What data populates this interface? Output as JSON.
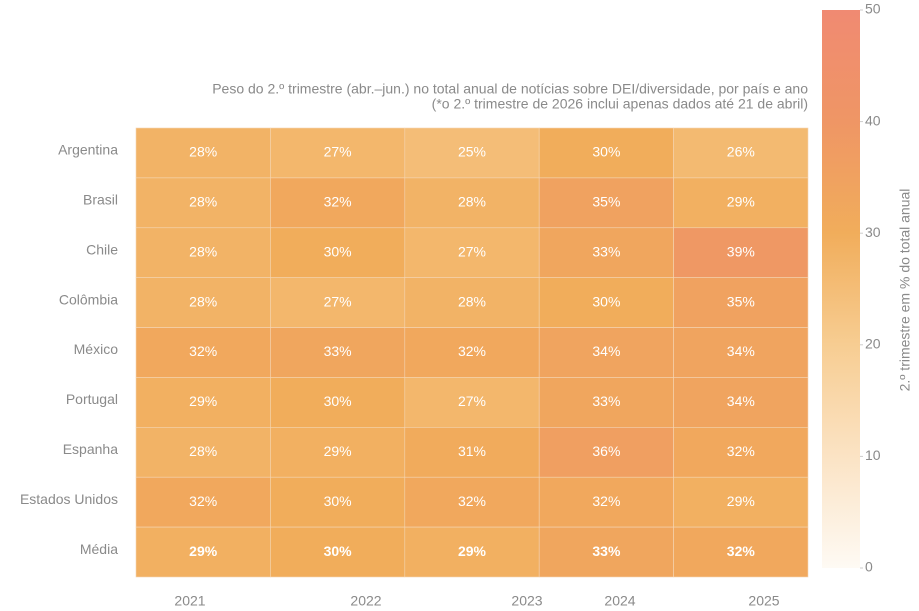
{
  "chart_data": {
    "type": "heatmap",
    "title": [
      "Peso do 2.º trimestre (abr.–jun.) no total anual de notícias sobre DEI/diversidade, por país e ano",
      "(*o 2.º trimestre de 2026 inclui apenas dados até 21 de abril)"
    ],
    "x": [
      "2021",
      "2022",
      "2023",
      "2024",
      "2025"
    ],
    "categories": [
      "Argentina",
      "Brasil",
      "Chile",
      "Colômbia",
      "México",
      "Portugal",
      "Espanha",
      "Estados Unidos",
      "Média"
    ],
    "values": [
      [
        28,
        27,
        25,
        30,
        26
      ],
      [
        28,
        32,
        28,
        35,
        29
      ],
      [
        28,
        30,
        27,
        33,
        39
      ],
      [
        28,
        27,
        28,
        30,
        35
      ],
      [
        32,
        33,
        32,
        34,
        34
      ],
      [
        29,
        30,
        27,
        33,
        34
      ],
      [
        28,
        29,
        31,
        36,
        32
      ],
      [
        32,
        30,
        32,
        32,
        29
      ],
      [
        29,
        30,
        29,
        33,
        32
      ]
    ],
    "value_labels": [
      [
        "28%",
        "27%",
        "25%",
        "30%",
        "26%"
      ],
      [
        "28%",
        "32%",
        "28%",
        "35%",
        "29%"
      ],
      [
        "28%",
        "30%",
        "27%",
        "33%",
        "39%"
      ],
      [
        "28%",
        "27%",
        "28%",
        "30%",
        "35%"
      ],
      [
        "32%",
        "33%",
        "32%",
        "34%",
        "34%"
      ],
      [
        "29%",
        "30%",
        "27%",
        "33%",
        "34%"
      ],
      [
        "28%",
        "29%",
        "31%",
        "36%",
        "32%"
      ],
      [
        "32%",
        "30%",
        "32%",
        "32%",
        "29%"
      ],
      [
        "29%",
        "30%",
        "29%",
        "33%",
        "32%"
      ]
    ],
    "colorbar_label": "2.º trimestre em % do total anual",
    "zlim": [
      0,
      50
    ],
    "zticks": [
      0,
      10,
      20,
      30,
      40,
      50
    ],
    "colors": [
      "#fefaf4",
      "#fbe3c4",
      "#f7cd92",
      "#f1ad5b",
      "#ef9665",
      "#f08a72"
    ]
  }
}
